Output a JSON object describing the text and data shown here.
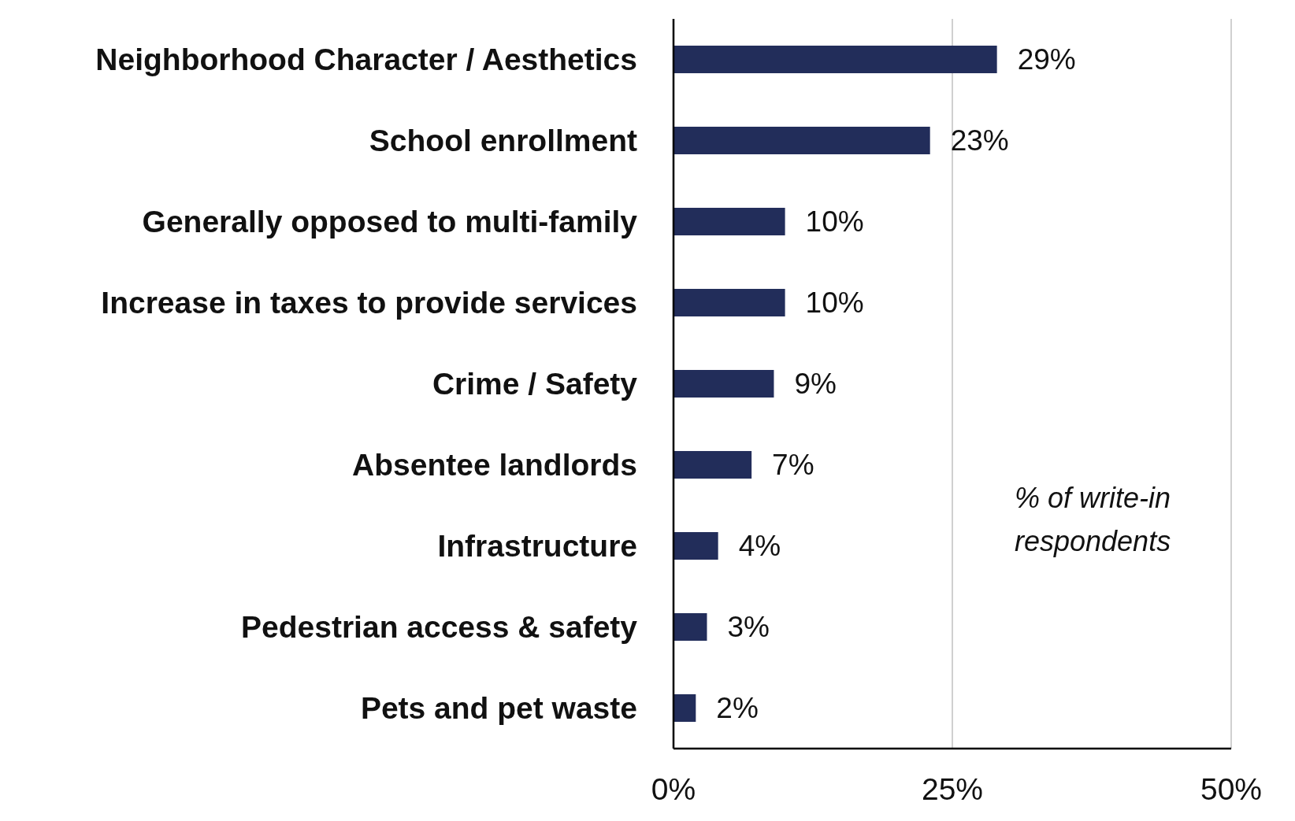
{
  "chart_data": {
    "type": "bar",
    "orientation": "horizontal",
    "categories": [
      "Neighborhood Character / Aesthetics",
      "School enrollment",
      "Generally opposed to multi-family",
      "Increase in taxes to provide services",
      "Crime / Safety",
      "Absentee landlords",
      "Infrastructure",
      "Pedestrian access & safety",
      "Pets and pet waste"
    ],
    "values": [
      29,
      23,
      10,
      10,
      9,
      7,
      4,
      3,
      2
    ],
    "value_labels": [
      "29%",
      "23%",
      "10%",
      "10%",
      "9%",
      "7%",
      "4%",
      "3%",
      "2%"
    ],
    "color": "#222d5a",
    "xlim": [
      0,
      50
    ],
    "xticks": [
      {
        "value": 0,
        "label": "0%"
      },
      {
        "value": 25,
        "label": "25%"
      },
      {
        "value": 50,
        "label": "50%"
      }
    ],
    "grid": "x",
    "annotations": [
      "% of write-in respondents"
    ]
  }
}
